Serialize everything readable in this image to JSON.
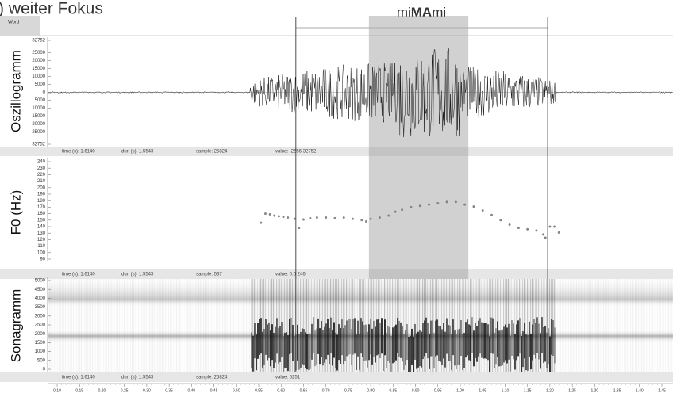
{
  "header": {
    "title": ") weiter Fokus",
    "word": [
      "mi",
      "MA",
      "mi"
    ]
  },
  "word_tier": {
    "label": "Word"
  },
  "oscillogram": {
    "label": "Oszillogramm",
    "ylim": [
      -32752,
      32752
    ],
    "yticks": [
      32752,
      25000,
      20000,
      15000,
      10000,
      5000,
      0,
      {
        "value": -5000,
        "label": "5000"
      },
      {
        "value": -10000,
        "label": "10000"
      },
      {
        "value": -15000,
        "label": "15000"
      },
      {
        "value": -20000,
        "label": "20000"
      },
      {
        "value": -25000,
        "label": "25000"
      },
      {
        "value": -32752,
        "label": "32752"
      }
    ],
    "status": [
      "time (s):  1.6140",
      "dur. (s):  1.5543",
      "sample:  25824",
      "value:  -2656 32752"
    ]
  },
  "f0": {
    "label": "F0 (Hz)",
    "ylim": [
      90,
      240
    ],
    "yticks": [
      240,
      230,
      220,
      210,
      200,
      190,
      180,
      170,
      160,
      150,
      140,
      130,
      120,
      110,
      100,
      90
    ],
    "x": [
      0.555,
      0.565,
      0.575,
      0.585,
      0.595,
      0.605,
      0.615,
      0.63,
      0.64,
      0.65,
      0.665,
      0.68,
      0.7,
      0.72,
      0.74,
      0.76,
      0.78,
      0.79,
      0.8,
      0.82,
      0.84,
      0.855,
      0.87,
      0.89,
      0.91,
      0.93,
      0.95,
      0.97,
      0.99,
      1.01,
      1.03,
      1.05,
      1.07,
      1.09,
      1.11,
      1.13,
      1.15,
      1.17,
      1.185,
      1.19,
      1.2,
      1.21,
      1.22
    ],
    "values": [
      146,
      160,
      159,
      157,
      156,
      155,
      154,
      152,
      138,
      151,
      153,
      154,
      154,
      153,
      154,
      152,
      150,
      148,
      152,
      154,
      157,
      163,
      166,
      170,
      172,
      174,
      176,
      178,
      178,
      174,
      171,
      165,
      158,
      150,
      143,
      138,
      136,
      134,
      128,
      123,
      140,
      140,
      131
    ],
    "status": [
      "time (s):  1.6140",
      "dur. (s):  1.5543",
      "sample:  537",
      "value:  0.0 246"
    ]
  },
  "sonagramm": {
    "label": "Sonagramm",
    "ylim": [
      0,
      5000
    ],
    "yticks": [
      5000,
      4500,
      4000,
      3500,
      3000,
      2500,
      2000,
      1500,
      1000,
      500,
      0
    ],
    "status": [
      "time (s):  1.6140",
      "dur. (s):  1.5543",
      "sample:  25824",
      "value:  5251"
    ]
  },
  "time_axis": {
    "xlim": [
      0.1,
      1.45
    ],
    "xticks": [
      {
        "value": 0.1,
        "label": "0.10"
      },
      {
        "value": 0.15,
        "label": "0.15"
      },
      {
        "value": 0.2,
        "label": "0.20"
      },
      {
        "value": 0.25,
        "label": "0.25"
      },
      {
        "value": 0.3,
        "label": "0.30"
      },
      {
        "value": 0.35,
        "label": "0.35"
      },
      {
        "value": 0.4,
        "label": "0.40"
      },
      {
        "value": 0.45,
        "label": "0.45"
      },
      {
        "value": 0.5,
        "label": "0.50"
      },
      {
        "value": 0.55,
        "label": "0.55"
      },
      {
        "value": 0.6,
        "label": "0.60"
      },
      {
        "value": 0.65,
        "label": "0.65"
      },
      {
        "value": 0.7,
        "label": "0.70"
      },
      {
        "value": 0.75,
        "label": "0.75"
      },
      {
        "value": 0.8,
        "label": "0.80"
      },
      {
        "value": 0.85,
        "label": "0.85"
      },
      {
        "value": 0.9,
        "label": "0.90"
      },
      {
        "value": 0.95,
        "label": "0.95"
      },
      {
        "value": 1.0,
        "label": "1.00"
      },
      {
        "value": 1.05,
        "label": "1.05"
      },
      {
        "value": 1.1,
        "label": "1.10"
      },
      {
        "value": 1.15,
        "label": "1.15"
      },
      {
        "value": 1.2,
        "label": "1.20"
      },
      {
        "value": 1.25,
        "label": "1.25"
      },
      {
        "value": 1.3,
        "label": "1.30"
      },
      {
        "value": 1.35,
        "label": "1.35"
      },
      {
        "value": 1.4,
        "label": "1.40"
      },
      {
        "value": 1.45,
        "label": "1.45"
      }
    ],
    "boundaries": [
      0.633,
      1.195
    ],
    "highlight": [
      0.796,
      1.018
    ]
  }
}
